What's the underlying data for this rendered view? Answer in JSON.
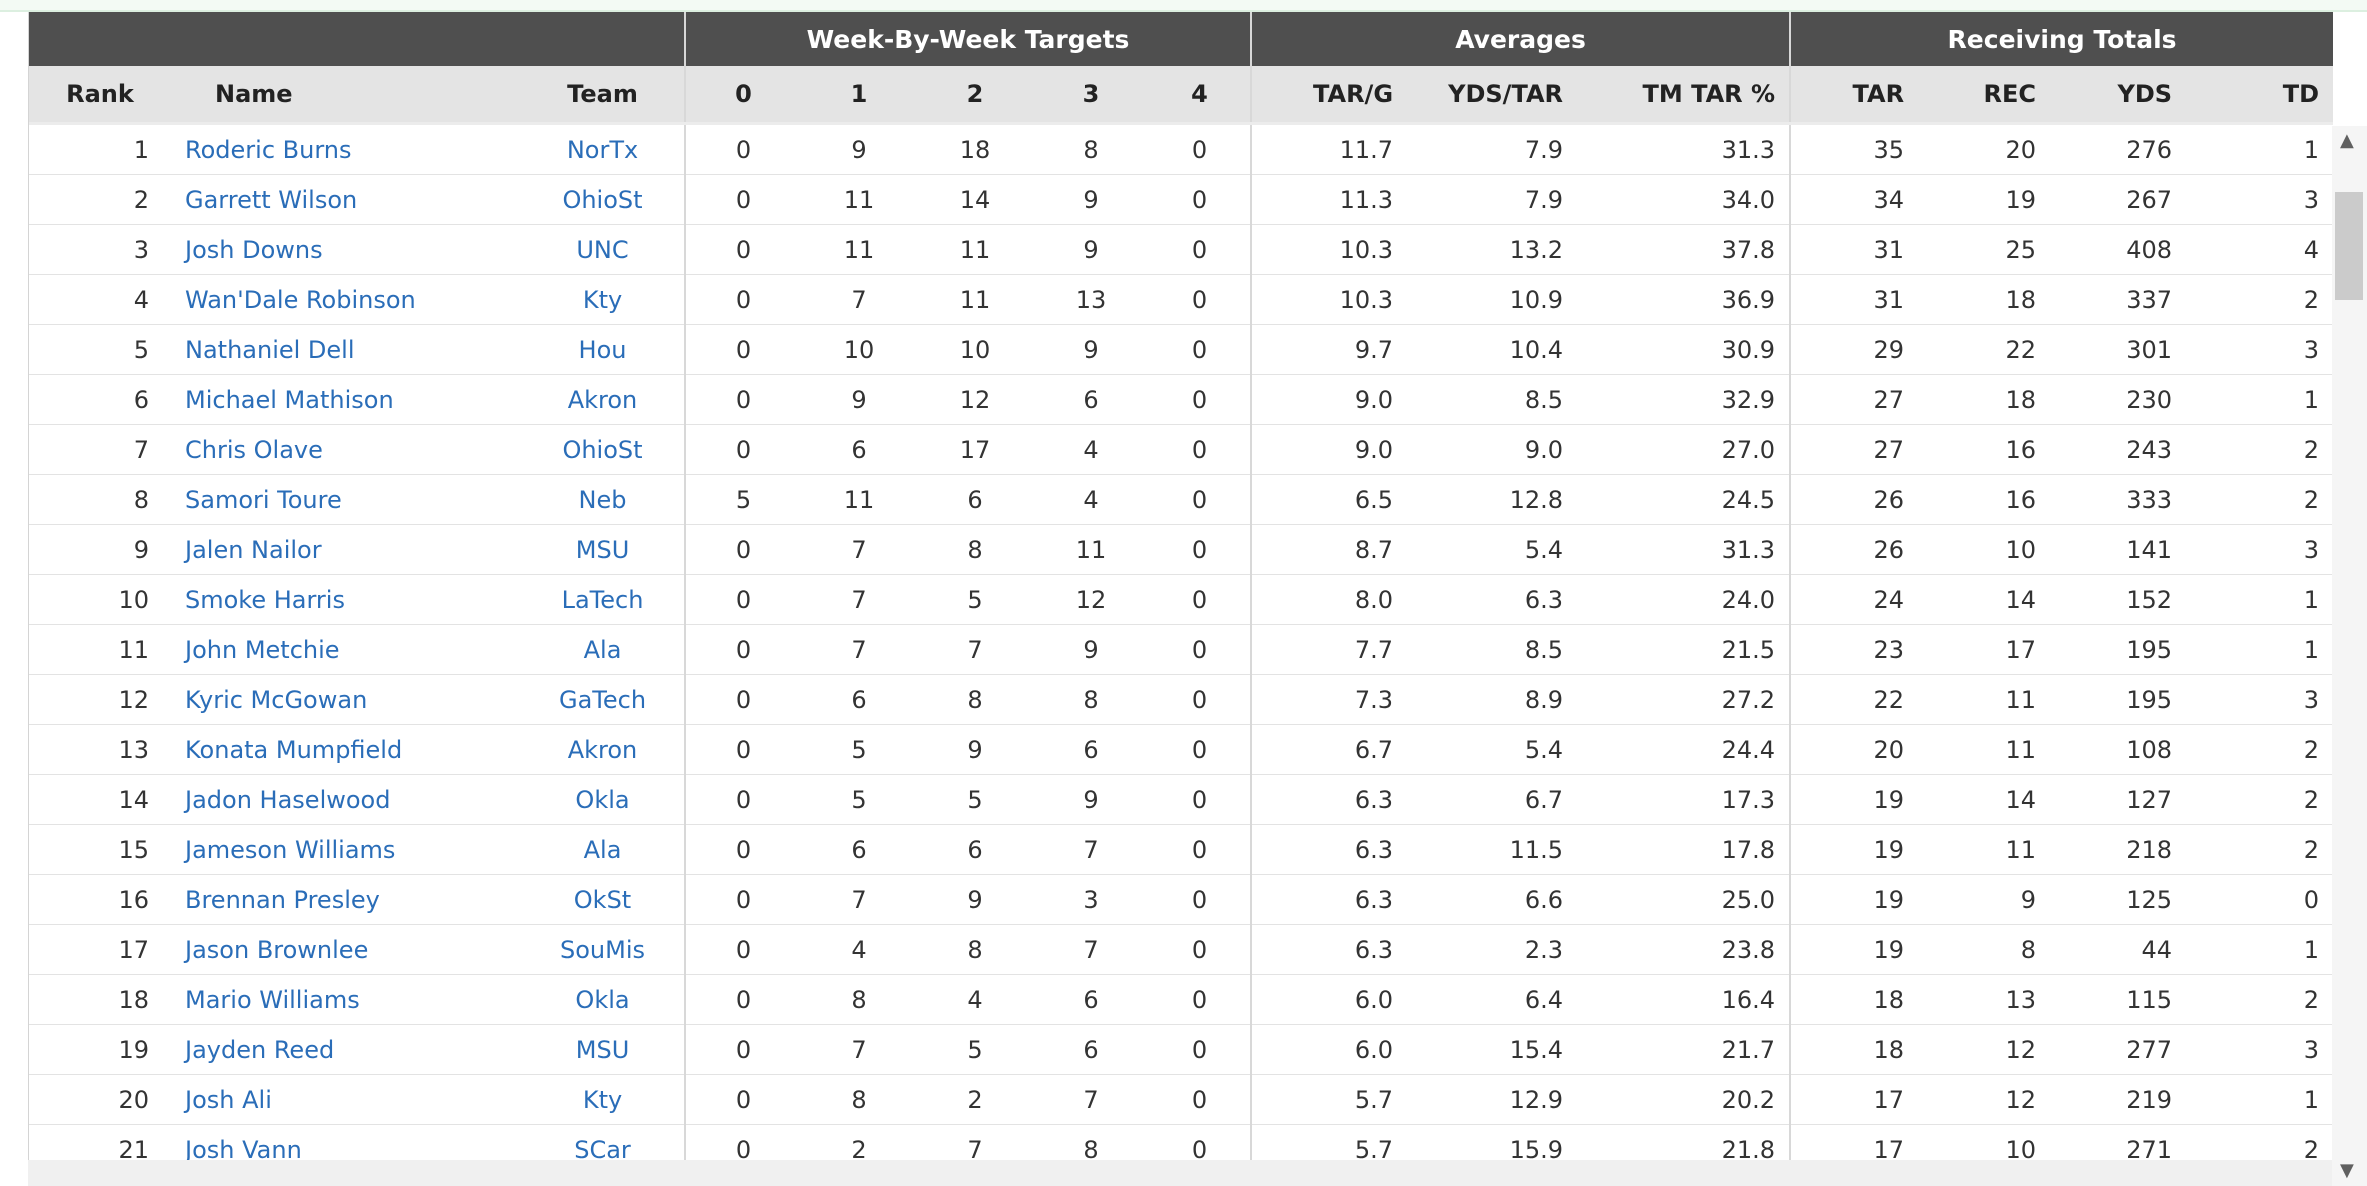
{
  "groups": {
    "week": "Week-By-Week Targets",
    "averages": "Averages",
    "totals": "Receiving Totals"
  },
  "columns": {
    "rank": "Rank",
    "name": "Name",
    "team": "Team",
    "w0": "0",
    "w1": "1",
    "w2": "2",
    "w3": "3",
    "w4": "4",
    "tar_g": "TAR/G",
    "yds_tar": "YDS/TAR",
    "tm_tar": "TM TAR %",
    "tar": "TAR",
    "rec": "REC",
    "yds": "YDS",
    "td": "TD"
  },
  "rows": [
    {
      "rank": "1",
      "name": "Roderic Burns",
      "team": "NorTx",
      "w0": "0",
      "w1": "9",
      "w2": "18",
      "w3": "8",
      "w4": "0",
      "tar_g": "11.7",
      "yds_tar": "7.9",
      "tm_tar": "31.3",
      "tar": "35",
      "rec": "20",
      "yds": "276",
      "td": "1"
    },
    {
      "rank": "2",
      "name": "Garrett Wilson",
      "team": "OhioSt",
      "w0": "0",
      "w1": "11",
      "w2": "14",
      "w3": "9",
      "w4": "0",
      "tar_g": "11.3",
      "yds_tar": "7.9",
      "tm_tar": "34.0",
      "tar": "34",
      "rec": "19",
      "yds": "267",
      "td": "3"
    },
    {
      "rank": "3",
      "name": "Josh Downs",
      "team": "UNC",
      "w0": "0",
      "w1": "11",
      "w2": "11",
      "w3": "9",
      "w4": "0",
      "tar_g": "10.3",
      "yds_tar": "13.2",
      "tm_tar": "37.8",
      "tar": "31",
      "rec": "25",
      "yds": "408",
      "td": "4"
    },
    {
      "rank": "4",
      "name": "Wan'Dale Robinson",
      "team": "Kty",
      "w0": "0",
      "w1": "7",
      "w2": "11",
      "w3": "13",
      "w4": "0",
      "tar_g": "10.3",
      "yds_tar": "10.9",
      "tm_tar": "36.9",
      "tar": "31",
      "rec": "18",
      "yds": "337",
      "td": "2"
    },
    {
      "rank": "5",
      "name": "Nathaniel Dell",
      "team": "Hou",
      "w0": "0",
      "w1": "10",
      "w2": "10",
      "w3": "9",
      "w4": "0",
      "tar_g": "9.7",
      "yds_tar": "10.4",
      "tm_tar": "30.9",
      "tar": "29",
      "rec": "22",
      "yds": "301",
      "td": "3"
    },
    {
      "rank": "6",
      "name": "Michael Mathison",
      "team": "Akron",
      "w0": "0",
      "w1": "9",
      "w2": "12",
      "w3": "6",
      "w4": "0",
      "tar_g": "9.0",
      "yds_tar": "8.5",
      "tm_tar": "32.9",
      "tar": "27",
      "rec": "18",
      "yds": "230",
      "td": "1"
    },
    {
      "rank": "7",
      "name": "Chris Olave",
      "team": "OhioSt",
      "w0": "0",
      "w1": "6",
      "w2": "17",
      "w3": "4",
      "w4": "0",
      "tar_g": "9.0",
      "yds_tar": "9.0",
      "tm_tar": "27.0",
      "tar": "27",
      "rec": "16",
      "yds": "243",
      "td": "2"
    },
    {
      "rank": "8",
      "name": "Samori Toure",
      "team": "Neb",
      "w0": "5",
      "w1": "11",
      "w2": "6",
      "w3": "4",
      "w4": "0",
      "tar_g": "6.5",
      "yds_tar": "12.8",
      "tm_tar": "24.5",
      "tar": "26",
      "rec": "16",
      "yds": "333",
      "td": "2"
    },
    {
      "rank": "9",
      "name": "Jalen Nailor",
      "team": "MSU",
      "w0": "0",
      "w1": "7",
      "w2": "8",
      "w3": "11",
      "w4": "0",
      "tar_g": "8.7",
      "yds_tar": "5.4",
      "tm_tar": "31.3",
      "tar": "26",
      "rec": "10",
      "yds": "141",
      "td": "3"
    },
    {
      "rank": "10",
      "name": "Smoke Harris",
      "team": "LaTech",
      "w0": "0",
      "w1": "7",
      "w2": "5",
      "w3": "12",
      "w4": "0",
      "tar_g": "8.0",
      "yds_tar": "6.3",
      "tm_tar": "24.0",
      "tar": "24",
      "rec": "14",
      "yds": "152",
      "td": "1"
    },
    {
      "rank": "11",
      "name": "John Metchie",
      "team": "Ala",
      "w0": "0",
      "w1": "7",
      "w2": "7",
      "w3": "9",
      "w4": "0",
      "tar_g": "7.7",
      "yds_tar": "8.5",
      "tm_tar": "21.5",
      "tar": "23",
      "rec": "17",
      "yds": "195",
      "td": "1"
    },
    {
      "rank": "12",
      "name": "Kyric McGowan",
      "team": "GaTech",
      "w0": "0",
      "w1": "6",
      "w2": "8",
      "w3": "8",
      "w4": "0",
      "tar_g": "7.3",
      "yds_tar": "8.9",
      "tm_tar": "27.2",
      "tar": "22",
      "rec": "11",
      "yds": "195",
      "td": "3"
    },
    {
      "rank": "13",
      "name": "Konata Mumpfield",
      "team": "Akron",
      "w0": "0",
      "w1": "5",
      "w2": "9",
      "w3": "6",
      "w4": "0",
      "tar_g": "6.7",
      "yds_tar": "5.4",
      "tm_tar": "24.4",
      "tar": "20",
      "rec": "11",
      "yds": "108",
      "td": "2"
    },
    {
      "rank": "14",
      "name": "Jadon Haselwood",
      "team": "Okla",
      "w0": "0",
      "w1": "5",
      "w2": "5",
      "w3": "9",
      "w4": "0",
      "tar_g": "6.3",
      "yds_tar": "6.7",
      "tm_tar": "17.3",
      "tar": "19",
      "rec": "14",
      "yds": "127",
      "td": "2"
    },
    {
      "rank": "15",
      "name": "Jameson Williams",
      "team": "Ala",
      "w0": "0",
      "w1": "6",
      "w2": "6",
      "w3": "7",
      "w4": "0",
      "tar_g": "6.3",
      "yds_tar": "11.5",
      "tm_tar": "17.8",
      "tar": "19",
      "rec": "11",
      "yds": "218",
      "td": "2"
    },
    {
      "rank": "16",
      "name": "Brennan Presley",
      "team": "OkSt",
      "w0": "0",
      "w1": "7",
      "w2": "9",
      "w3": "3",
      "w4": "0",
      "tar_g": "6.3",
      "yds_tar": "6.6",
      "tm_tar": "25.0",
      "tar": "19",
      "rec": "9",
      "yds": "125",
      "td": "0"
    },
    {
      "rank": "17",
      "name": "Jason Brownlee",
      "team": "SouMis",
      "w0": "0",
      "w1": "4",
      "w2": "8",
      "w3": "7",
      "w4": "0",
      "tar_g": "6.3",
      "yds_tar": "2.3",
      "tm_tar": "23.8",
      "tar": "19",
      "rec": "8",
      "yds": "44",
      "td": "1"
    },
    {
      "rank": "18",
      "name": "Mario Williams",
      "team": "Okla",
      "w0": "0",
      "w1": "8",
      "w2": "4",
      "w3": "6",
      "w4": "0",
      "tar_g": "6.0",
      "yds_tar": "6.4",
      "tm_tar": "16.4",
      "tar": "18",
      "rec": "13",
      "yds": "115",
      "td": "2"
    },
    {
      "rank": "19",
      "name": "Jayden Reed",
      "team": "MSU",
      "w0": "0",
      "w1": "7",
      "w2": "5",
      "w3": "6",
      "w4": "0",
      "tar_g": "6.0",
      "yds_tar": "15.4",
      "tm_tar": "21.7",
      "tar": "18",
      "rec": "12",
      "yds": "277",
      "td": "3"
    },
    {
      "rank": "20",
      "name": "Josh Ali",
      "team": "Kty",
      "w0": "0",
      "w1": "8",
      "w2": "2",
      "w3": "7",
      "w4": "0",
      "tar_g": "5.7",
      "yds_tar": "12.9",
      "tm_tar": "20.2",
      "tar": "17",
      "rec": "12",
      "yds": "219",
      "td": "1"
    },
    {
      "rank": "21",
      "name": "Josh Vann",
      "team": "SCar",
      "w0": "0",
      "w1": "2",
      "w2": "7",
      "w3": "8",
      "w4": "0",
      "tar_g": "5.7",
      "yds_tar": "15.9",
      "tm_tar": "21.8",
      "tar": "17",
      "rec": "10",
      "yds": "271",
      "td": "2"
    }
  ],
  "scrollbar": {
    "up_arrow": "▲",
    "down_arrow": "▼"
  },
  "colors": {
    "group_header_bg": "#4f4f4f",
    "column_header_bg": "#e4e4e4",
    "link": "#2a6db8"
  }
}
